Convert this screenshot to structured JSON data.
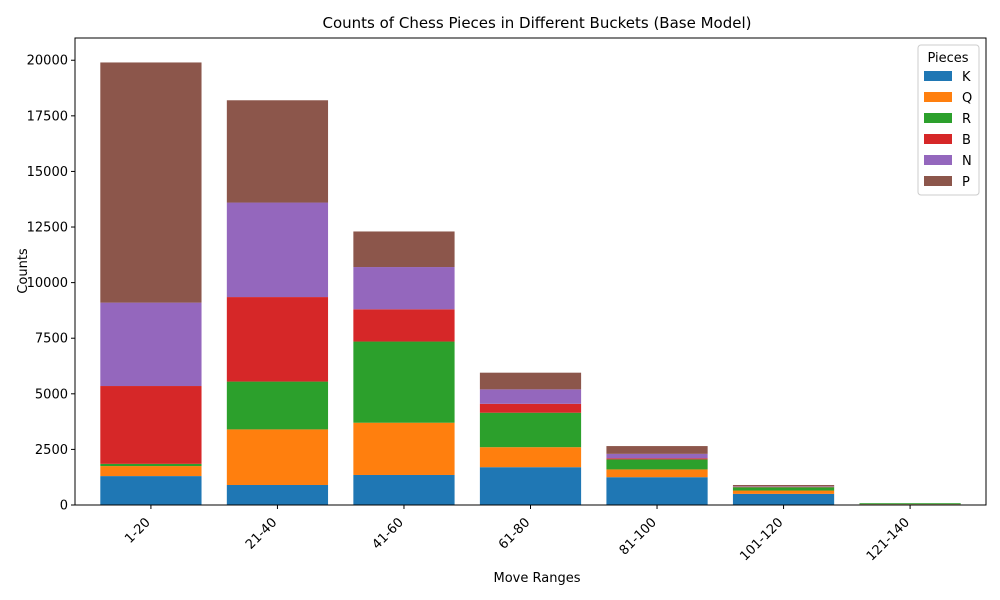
{
  "chart_data": {
    "type": "bar",
    "stacked": true,
    "title": "Counts of Chess Pieces in Different Buckets (Base Model)",
    "xlabel": "Move Ranges",
    "ylabel": "Counts",
    "ylim": [
      0,
      21000
    ],
    "yticks": [
      0,
      2500,
      5000,
      7500,
      10000,
      12500,
      15000,
      17500,
      20000
    ],
    "categories": [
      "1-20",
      "21-40",
      "41-60",
      "61-80",
      "81-100",
      "101-120",
      "121-140"
    ],
    "legend_title": "Pieces",
    "legend_position": "top-right",
    "grid": false,
    "series": [
      {
        "name": "K",
        "color": "#1f77b4",
        "values": [
          1300,
          900,
          1350,
          1700,
          1250,
          500,
          30
        ]
      },
      {
        "name": "Q",
        "color": "#ff7f0e",
        "values": [
          450,
          2500,
          2350,
          900,
          350,
          150,
          10
        ]
      },
      {
        "name": "R",
        "color": "#2ca02c",
        "values": [
          100,
          2150,
          3650,
          1550,
          450,
          150,
          40
        ]
      },
      {
        "name": "B",
        "color": "#d62728",
        "values": [
          3500,
          3800,
          1450,
          400,
          50,
          20,
          0
        ]
      },
      {
        "name": "N",
        "color": "#9467bd",
        "values": [
          3750,
          4250,
          1900,
          650,
          200,
          20,
          0
        ]
      },
      {
        "name": "P",
        "color": "#8c564b",
        "values": [
          10800,
          4600,
          1600,
          750,
          350,
          60,
          0
        ]
      }
    ]
  }
}
